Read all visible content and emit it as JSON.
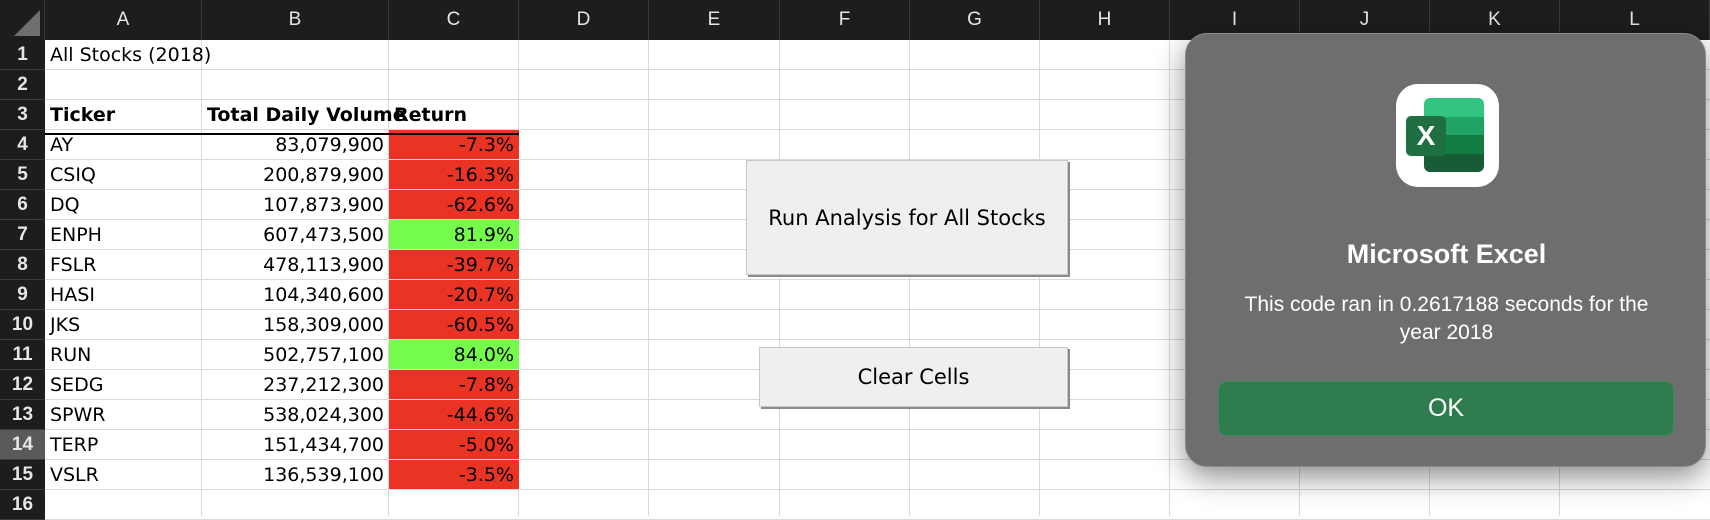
{
  "columns": [
    "A",
    "B",
    "C",
    "D",
    "E",
    "F",
    "G",
    "H",
    "I",
    "J",
    "K",
    "L"
  ],
  "rows": [
    "1",
    "2",
    "3",
    "4",
    "5",
    "6",
    "7",
    "8",
    "9",
    "10",
    "11",
    "12",
    "13",
    "14",
    "15",
    "16"
  ],
  "selected_row": "14",
  "title_cell": "All Stocks (2018)",
  "headers": {
    "ticker": "Ticker",
    "volume": "Total Daily Volume",
    "return": "Return"
  },
  "stocks": [
    {
      "ticker": "AY",
      "volume": "83,079,900",
      "return": "-7.3%",
      "return_value": -7.3
    },
    {
      "ticker": "CSIQ",
      "volume": "200,879,900",
      "return": "-16.3%",
      "return_value": -16.3
    },
    {
      "ticker": "DQ",
      "volume": "107,873,900",
      "return": "-62.6%",
      "return_value": -62.6
    },
    {
      "ticker": "ENPH",
      "volume": "607,473,500",
      "return": "81.9%",
      "return_value": 81.9
    },
    {
      "ticker": "FSLR",
      "volume": "478,113,900",
      "return": "-39.7%",
      "return_value": -39.7
    },
    {
      "ticker": "HASI",
      "volume": "104,340,600",
      "return": "-20.7%",
      "return_value": -20.7
    },
    {
      "ticker": "JKS",
      "volume": "158,309,000",
      "return": "-60.5%",
      "return_value": -60.5
    },
    {
      "ticker": "RUN",
      "volume": "502,757,100",
      "return": "84.0%",
      "return_value": 84.0
    },
    {
      "ticker": "SEDG",
      "volume": "237,212,300",
      "return": "-7.8%",
      "return_value": -7.8
    },
    {
      "ticker": "SPWR",
      "volume": "538,024,300",
      "return": "-44.6%",
      "return_value": -44.6
    },
    {
      "ticker": "TERP",
      "volume": "151,434,700",
      "return": "-5.0%",
      "return_value": -5.0
    },
    {
      "ticker": "VSLR",
      "volume": "136,539,100",
      "return": "-3.5%",
      "return_value": -3.5
    }
  ],
  "colors": {
    "negative": "#ea3323",
    "positive": "#75fb4c",
    "ok_button": "#2f7d4e",
    "header_bg": "#1d1d1d"
  },
  "buttons": {
    "run_analysis": "Run Analysis for All Stocks",
    "clear_cells": "Clear Cells"
  },
  "dialog": {
    "icon": "excel-app-icon",
    "icon_letter": "X",
    "title": "Microsoft Excel",
    "message": "This code ran in 0.2617188 seconds for the year 2018",
    "ok_label": "OK"
  }
}
